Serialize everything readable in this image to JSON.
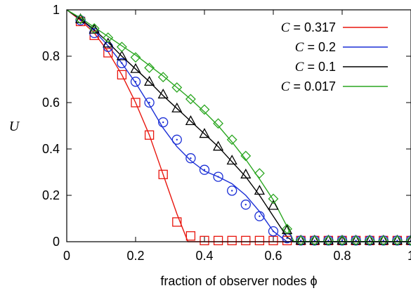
{
  "chart_data": {
    "type": "line",
    "xlabel": "fraction of observer nodes ϕ",
    "ylabel": "U",
    "xlim": [
      0,
      1
    ],
    "ylim": [
      0,
      1
    ],
    "xticks": [
      "0",
      "0.2",
      "0.4",
      "0.6",
      "0.8",
      "1"
    ],
    "yticks": [
      "0",
      "0.2",
      "0.4",
      "0.6",
      "0.8",
      "1"
    ],
    "legend_position": "top-right",
    "series": [
      {
        "name": "C = 0.317",
        "color": "#e8160e",
        "marker": "square",
        "line_x": [
          0,
          0.04,
          0.08,
          0.12,
          0.16,
          0.2,
          0.24,
          0.28,
          0.32,
          0.352,
          0.4,
          1.0
        ],
        "line_y": [
          1.0,
          0.955,
          0.9,
          0.82,
          0.72,
          0.6,
          0.46,
          0.29,
          0.12,
          0.0,
          0.0,
          0.0
        ],
        "points_x": [
          0.04,
          0.08,
          0.12,
          0.16,
          0.2,
          0.24,
          0.28,
          0.32,
          0.36,
          0.4,
          0.44,
          0.48,
          0.52,
          0.56,
          0.6,
          0.64,
          0.68,
          0.72,
          0.76,
          0.8,
          0.84,
          0.88,
          0.92,
          0.96,
          1.0
        ],
        "points_y": [
          0.95,
          0.89,
          0.815,
          0.72,
          0.6,
          0.46,
          0.29,
          0.085,
          0.025,
          0.005,
          0.005,
          0.005,
          0.005,
          0.005,
          0.005,
          0.005,
          0.005,
          0.005,
          0.005,
          0.005,
          0.005,
          0.005,
          0.005,
          0.005,
          0.005
        ]
      },
      {
        "name": "C = 0.2",
        "color": "#1b2fd6",
        "marker": "circle",
        "line_x": [
          0,
          0.04,
          0.08,
          0.12,
          0.16,
          0.2,
          0.24,
          0.28,
          0.32,
          0.36,
          0.4,
          0.44,
          0.48,
          0.52,
          0.56,
          0.6,
          0.64,
          0.66,
          1.0
        ],
        "line_y": [
          1.0,
          0.96,
          0.91,
          0.845,
          0.77,
          0.685,
          0.59,
          0.49,
          0.41,
          0.35,
          0.305,
          0.28,
          0.25,
          0.2,
          0.13,
          0.045,
          0.0,
          0.0,
          0.0
        ],
        "points_x": [
          0.04,
          0.08,
          0.12,
          0.16,
          0.2,
          0.24,
          0.28,
          0.32,
          0.36,
          0.4,
          0.44,
          0.48,
          0.52,
          0.56,
          0.6,
          0.64,
          0.68,
          0.72,
          0.76,
          0.8,
          0.84,
          0.88,
          0.92,
          0.96,
          1.0
        ],
        "points_y": [
          0.955,
          0.9,
          0.84,
          0.77,
          0.69,
          0.6,
          0.515,
          0.44,
          0.36,
          0.31,
          0.28,
          0.22,
          0.16,
          0.11,
          0.045,
          0.015,
          0.005,
          0.005,
          0.005,
          0.005,
          0.005,
          0.005,
          0.005,
          0.005,
          0.005
        ]
      },
      {
        "name": "C = 0.1",
        "color": "#000000",
        "marker": "triangle",
        "line_x": [
          0,
          0.04,
          0.08,
          0.12,
          0.16,
          0.2,
          0.24,
          0.28,
          0.32,
          0.36,
          0.4,
          0.44,
          0.48,
          0.52,
          0.56,
          0.6,
          0.64,
          0.66,
          1.0
        ],
        "line_y": [
          1.0,
          0.96,
          0.915,
          0.86,
          0.8,
          0.745,
          0.69,
          0.63,
          0.575,
          0.52,
          0.465,
          0.41,
          0.345,
          0.28,
          0.2,
          0.11,
          0.02,
          0.0,
          0.0
        ],
        "points_x": [
          0.04,
          0.08,
          0.12,
          0.16,
          0.2,
          0.24,
          0.28,
          0.32,
          0.36,
          0.4,
          0.44,
          0.48,
          0.52,
          0.56,
          0.6,
          0.64,
          0.68,
          0.72,
          0.76,
          0.8,
          0.84,
          0.88,
          0.92,
          0.96,
          1.0
        ],
        "points_y": [
          0.96,
          0.915,
          0.855,
          0.8,
          0.745,
          0.69,
          0.635,
          0.575,
          0.52,
          0.465,
          0.41,
          0.35,
          0.29,
          0.22,
          0.155,
          0.05,
          0.005,
          0.005,
          0.005,
          0.005,
          0.005,
          0.005,
          0.005,
          0.005,
          0.005
        ]
      },
      {
        "name": "C = 0.017",
        "color": "#2aa620",
        "marker": "diamond",
        "line_x": [
          0,
          0.04,
          0.08,
          0.12,
          0.16,
          0.2,
          0.24,
          0.28,
          0.32,
          0.36,
          0.4,
          0.44,
          0.48,
          0.52,
          0.56,
          0.6,
          0.64,
          0.66,
          1.0
        ],
        "line_y": [
          1.0,
          0.965,
          0.925,
          0.885,
          0.845,
          0.805,
          0.76,
          0.715,
          0.665,
          0.615,
          0.56,
          0.5,
          0.43,
          0.355,
          0.27,
          0.18,
          0.065,
          0.0,
          0.0
        ],
        "points_x": [
          0.04,
          0.08,
          0.12,
          0.16,
          0.2,
          0.24,
          0.28,
          0.32,
          0.36,
          0.4,
          0.44,
          0.48,
          0.52,
          0.56,
          0.6,
          0.64,
          0.68,
          0.72,
          0.76,
          0.8,
          0.84,
          0.88,
          0.92,
          0.96,
          1.0
        ],
        "points_y": [
          0.96,
          0.92,
          0.88,
          0.84,
          0.795,
          0.75,
          0.71,
          0.665,
          0.615,
          0.57,
          0.51,
          0.44,
          0.37,
          0.295,
          0.185,
          0.055,
          0.005,
          0.005,
          0.005,
          0.005,
          0.005,
          0.005,
          0.005,
          0.005,
          0.005
        ]
      }
    ]
  }
}
